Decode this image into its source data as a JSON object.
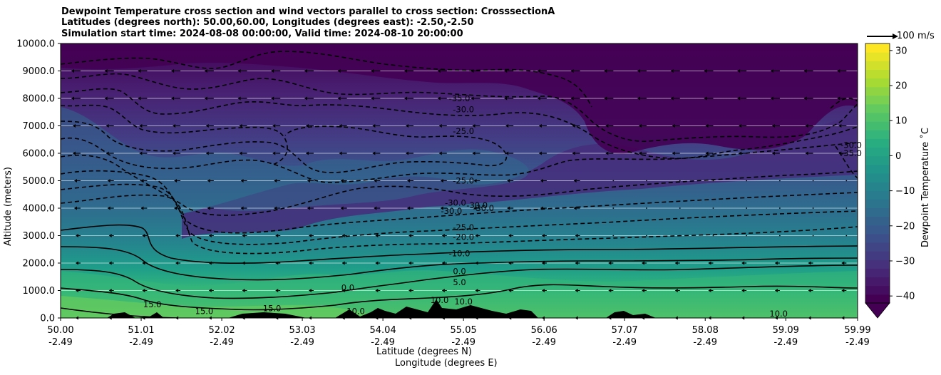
{
  "titles": {
    "line1": "Dewpoint Temperature cross section and wind vectors parallel to cross section: CrosssectionA",
    "line2": "Latitudes (degrees north): 50.00,60.00, Longitudes (degrees east): -2.50,-2.50",
    "line3": "Simulation start time: 2024-08-08 00:00:00, Valid time: 2024-08-10 20:00:00"
  },
  "wind_key_label": "100 m/s",
  "colorbar": {
    "label": "Dewpoint Temperature ˚C",
    "ticks": [
      "30",
      "20",
      "10",
      "0",
      "−10",
      "−20",
      "−30",
      "−40"
    ],
    "tick_values": [
      30,
      20,
      10,
      0,
      -10,
      -20,
      -30,
      -40
    ],
    "range": [
      -42,
      32
    ],
    "extend": "min",
    "colors": [
      "#440154",
      "#472d7b",
      "#3b528b",
      "#2c728e",
      "#21918c",
      "#28ae80",
      "#5ec962",
      "#addc30",
      "#fde725"
    ]
  },
  "chart_data": {
    "type": "contour",
    "xlabel": "Latitude (degrees N)",
    "xlabel2": "Longitude (degrees E)",
    "ylabel": "Altitude (meters)",
    "ylim": [
      0,
      10000
    ],
    "y_ticks": [
      "0.0",
      "1000.0",
      "2000.0",
      "3000.0",
      "4000.0",
      "5000.0",
      "6000.0",
      "7000.0",
      "8000.0",
      "9000.0",
      "10000.0"
    ],
    "y_values": [
      0,
      1000,
      2000,
      3000,
      4000,
      5000,
      6000,
      7000,
      8000,
      9000,
      10000
    ],
    "x_ticks_lat": [
      "50.00",
      "51.01",
      "52.02",
      "53.03",
      "54.04",
      "55.05",
      "56.06",
      "57.07",
      "58.08",
      "59.09",
      "59.99"
    ],
    "x_ticks_lon": [
      "-2.49",
      "-2.49",
      "-2.49",
      "-2.49",
      "-2.49",
      "-2.49",
      "-2.49",
      "-2.49",
      "-2.49",
      "-2.49",
      "-2.49"
    ],
    "x_values": [
      50.0,
      51.01,
      52.02,
      53.03,
      54.04,
      55.05,
      56.06,
      57.07,
      58.08,
      59.09,
      59.99
    ],
    "xlim": [
      50.0,
      59.99
    ],
    "grid": "horizontal",
    "contour_labels": [
      {
        "text": "-35.0",
        "lat": 55.0,
        "alt": 8000
      },
      {
        "text": "-30.0",
        "lat": 55.05,
        "alt": 7600
      },
      {
        "text": "-25.0",
        "lat": 55.05,
        "alt": 6800
      },
      {
        "text": "-25.0",
        "lat": 55.05,
        "alt": 5000
      },
      {
        "text": "-30.0",
        "lat": 54.95,
        "alt": 4200
      },
      {
        "text": "-30.0",
        "lat": 54.9,
        "alt": 3900
      },
      {
        "text": "-30.0",
        "lat": 55.3,
        "alt": 4000
      },
      {
        "text": "-30.0",
        "lat": 55.22,
        "alt": 4100
      },
      {
        "text": "-25.0",
        "lat": 55.05,
        "alt": 3300
      },
      {
        "text": "-20.0",
        "lat": 55.05,
        "alt": 2950
      },
      {
        "text": "-10.0",
        "lat": 55.0,
        "alt": 2350
      },
      {
        "text": "0.0",
        "lat": 55.0,
        "alt": 1700
      },
      {
        "text": "5.0",
        "lat": 55.0,
        "alt": 1300
      },
      {
        "text": "10.0",
        "lat": 55.05,
        "alt": 600
      },
      {
        "text": "0.0",
        "lat": 53.6,
        "alt": 1100
      },
      {
        "text": "10.0",
        "lat": 53.7,
        "alt": 250
      },
      {
        "text": "15.0",
        "lat": 51.15,
        "alt": 500
      },
      {
        "text": "15.0",
        "lat": 51.8,
        "alt": 250
      },
      {
        "text": "15.0",
        "lat": 52.65,
        "alt": 350
      },
      {
        "text": "10.0",
        "lat": 54.75,
        "alt": 650
      },
      {
        "text": "10.0",
        "lat": 59.0,
        "alt": 150
      },
      {
        "text": "-30.0",
        "lat": 59.91,
        "alt": 6300
      },
      {
        "text": "-35.0",
        "lat": 59.91,
        "alt": 6000
      }
    ]
  }
}
